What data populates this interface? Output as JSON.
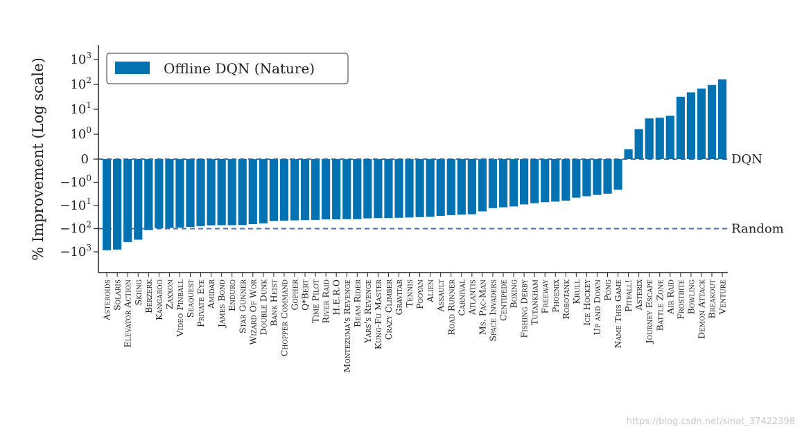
{
  "chart_data": {
    "type": "bar",
    "ylabel": "% Improvement (Log scale)",
    "yscale": "symlog",
    "ylim": [
      -3000,
      6000
    ],
    "yticks": [
      {
        "value": 1000,
        "base": "10",
        "exp": "3"
      },
      {
        "value": 100,
        "base": "10",
        "exp": "2"
      },
      {
        "value": 10,
        "base": "10",
        "exp": "1"
      },
      {
        "value": 1,
        "base": "10",
        "exp": "0"
      },
      {
        "value": 0,
        "base": "0",
        "exp": ""
      },
      {
        "value": -1,
        "base": "−10",
        "exp": "0"
      },
      {
        "value": -10,
        "base": "−10",
        "exp": "1"
      },
      {
        "value": -100,
        "base": "−10",
        "exp": "2"
      },
      {
        "value": -1000,
        "base": "−10",
        "exp": "3"
      }
    ],
    "legend": {
      "location": "top-left",
      "entries": [
        "Offline DQN (Nature)"
      ]
    },
    "reference_lines": [
      {
        "label": "DQN",
        "value": 0
      },
      {
        "label": "Random",
        "value": -100
      }
    ],
    "color": "#0072b2",
    "reference_color": "#4a6aa8",
    "categories": [
      "Asteroids",
      "Solaris",
      "Elevator Action",
      "Skiing",
      "Berzerk",
      "Kangaroo",
      "Zaxxon",
      "Video Pinball",
      "Seaquest",
      "Private Eye",
      "Amidar",
      "James Bond",
      "Enduro",
      "Star Gunner",
      "Wizard Of Wor",
      "Double Dunk",
      "Bank Heist",
      "Chopper Command",
      "Gopher",
      "Q*Bert",
      "Time Pilot",
      "River Raid",
      "H.E.R.O",
      "Montezuma's Revenge",
      "Beam Rider",
      "Yars's Revenge",
      "Kung-Fu Master",
      "Crazy Climber",
      "Gravitar",
      "Tennis",
      "Pooyan",
      "Alien",
      "Assault",
      "Road Runner",
      "Carnival",
      "Atlantis",
      "Ms. Pac-Man",
      "Space Invaders",
      "Centipede",
      "Boxing",
      "Fishing Derby",
      "Tutankham",
      "Freeway",
      "Phoenix",
      "Robotank",
      "Krull",
      "Ice Hockey",
      "Up and Down",
      "Pong",
      "Name This Game",
      "Pitfall!",
      "Asterix",
      "Journey Escape",
      "Battle Zone",
      "Air Raid",
      "Frostbite",
      "Bowling",
      "Demon Attack",
      "Breakout",
      "Venture"
    ],
    "values": [
      -850,
      -800,
      -380,
      -300,
      -115,
      -97,
      -93,
      -90,
      -85,
      -78,
      -72,
      -71,
      -71,
      -70,
      -64,
      -59,
      -47,
      -45,
      -44,
      -43,
      -42,
      -40,
      -40,
      -39,
      -39,
      -36,
      -35,
      -35,
      -34,
      -33,
      -32,
      -31,
      -28,
      -26,
      -25,
      -24,
      -18,
      -13,
      -12,
      -11,
      -9,
      -8,
      -7.2,
      -6.8,
      -6.2,
      -4.6,
      -4.0,
      -3.5,
      -3.1,
      -2.1,
      -0.04,
      1.6,
      4.3,
      4.6,
      5.5,
      32,
      48,
      68,
      95,
      160
    ]
  },
  "watermark": "https://blog.csdn.net/sinat_37422398"
}
